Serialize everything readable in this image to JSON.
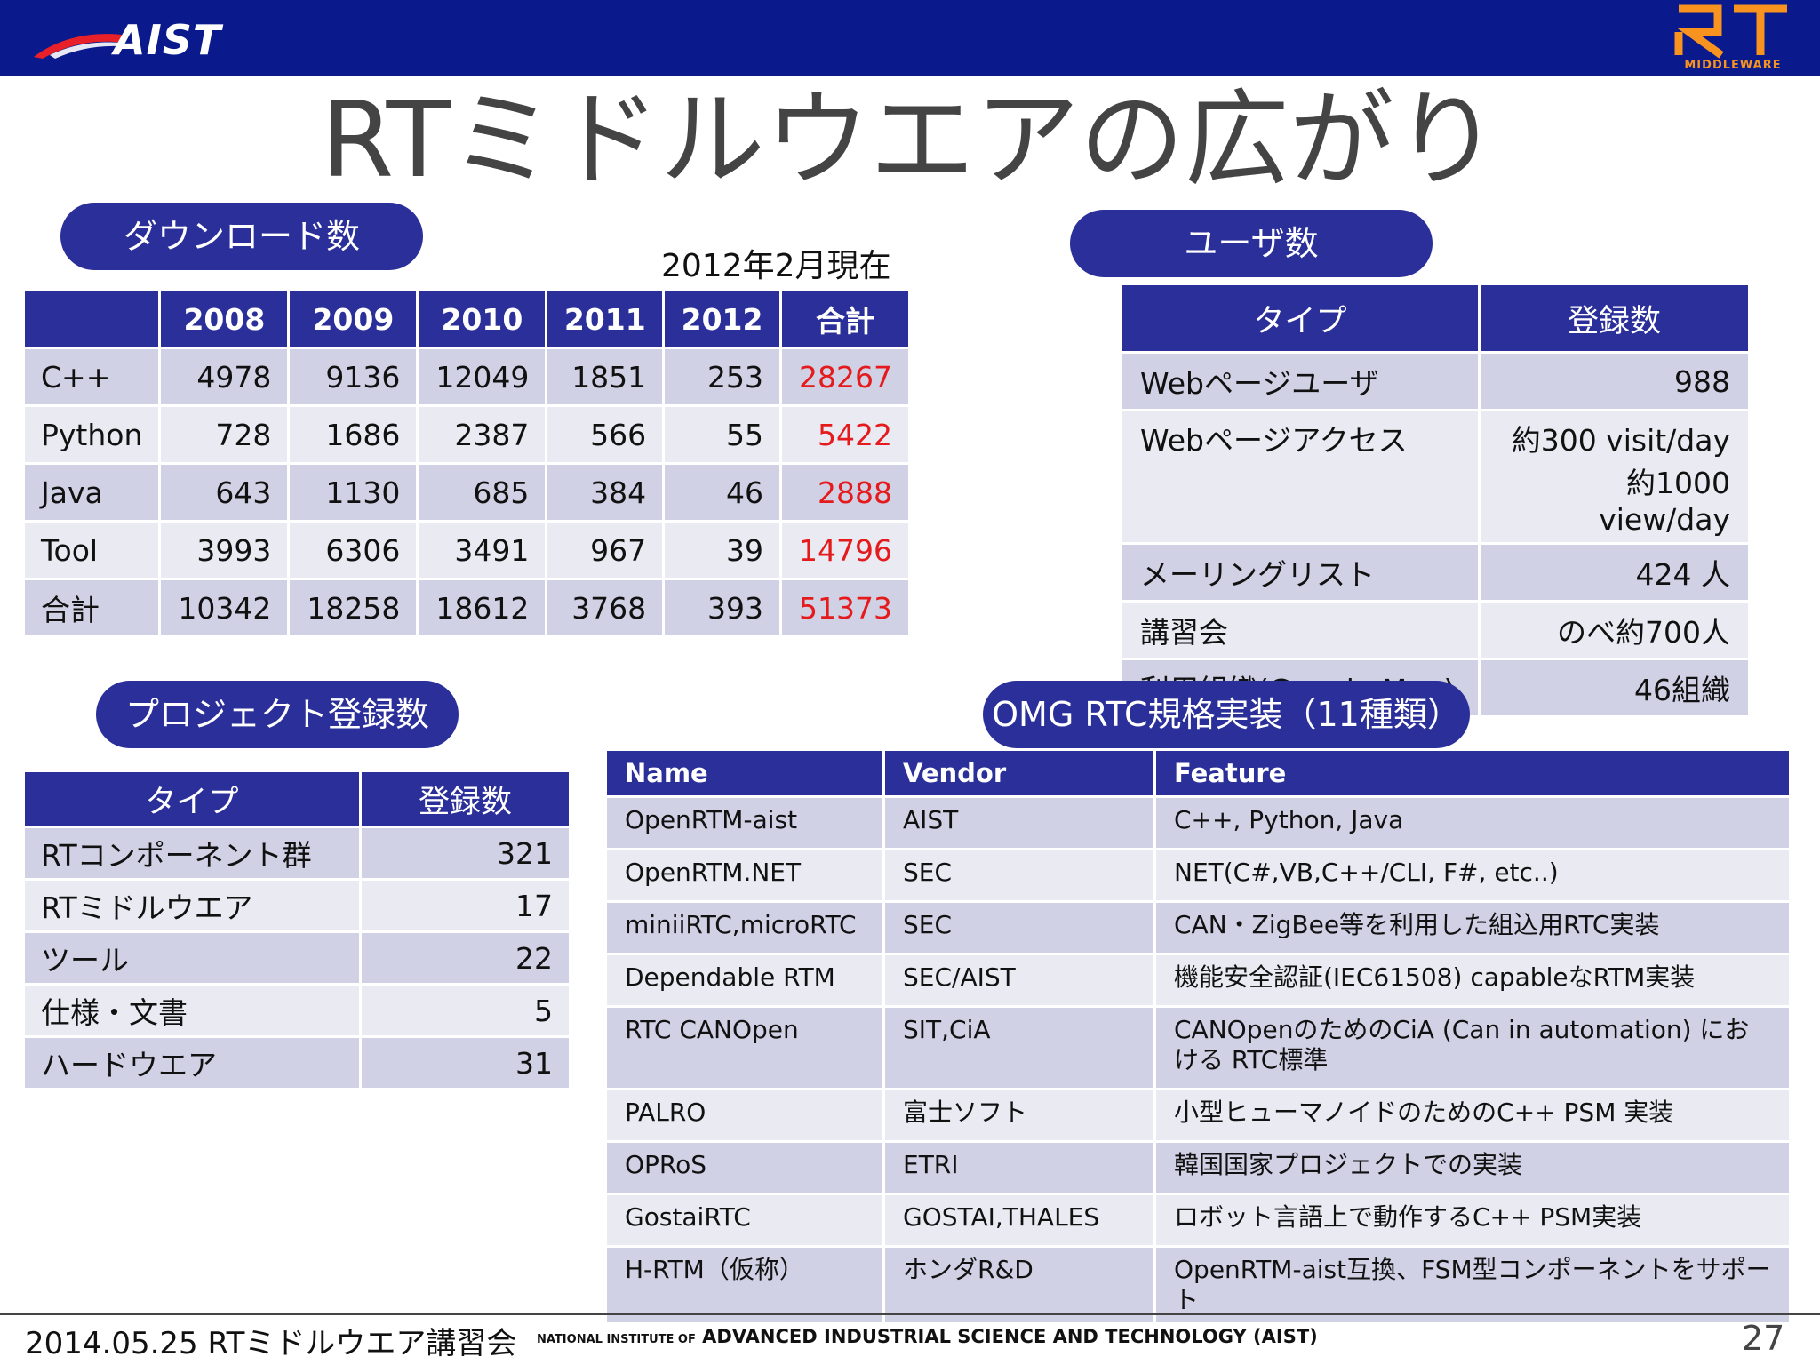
{
  "header": {
    "aist_logo_text": "AIST",
    "rt_logo_text": "RT",
    "rt_logo_sub": "MIDDLEWARE",
    "colors": {
      "bar": "#0a1a8c",
      "logo_red": "#e8202a",
      "logo_orange": "#f7931e"
    }
  },
  "title": "RTミドルウエアの広がり",
  "downloads": {
    "pill": "ダウンロード数",
    "date_note": "2012年2月現在",
    "headers": [
      "",
      "2008",
      "2009",
      "2010",
      "2011",
      "2012",
      "合計"
    ],
    "rows": [
      [
        "C++",
        "4978",
        "9136",
        "12049",
        "1851",
        "253",
        "28267"
      ],
      [
        "Python",
        "728",
        "1686",
        "2387",
        "566",
        "55",
        "5422"
      ],
      [
        "Java",
        "643",
        "1130",
        "685",
        "384",
        "46",
        "2888"
      ],
      [
        "Tool",
        "3993",
        "6306",
        "3491",
        "967",
        "39",
        "14796"
      ],
      [
        "合計",
        "10342",
        "18258",
        "18612",
        "3768",
        "393",
        "51373"
      ]
    ]
  },
  "users": {
    "pill": "ユーザ数",
    "headers": [
      "タイプ",
      "登録数"
    ],
    "rows": [
      [
        "Webページユーザ",
        "988"
      ],
      [
        "Webページアクセス",
        "約300 visit/day",
        "約1000 view/day"
      ],
      [
        "メーリングリスト",
        "424 人"
      ],
      [
        "講習会",
        "のべ約700人"
      ],
      [
        "利用組織(Google Map)",
        "46組織"
      ]
    ]
  },
  "projects": {
    "pill": "プロジェクト登録数",
    "headers": [
      "タイプ",
      "登録数"
    ],
    "rows": [
      [
        "RTコンポーネント群",
        "321"
      ],
      [
        "RTミドルウエア",
        "17"
      ],
      [
        "ツール",
        "22"
      ],
      [
        "仕様・文書",
        "5"
      ],
      [
        "ハードウエア",
        "31"
      ]
    ]
  },
  "omg": {
    "pill": "OMG RTC規格実装（11種類）",
    "headers": [
      "Name",
      "Vendor",
      "Feature"
    ],
    "rows": [
      [
        "OpenRTM-aist",
        "AIST",
        "C++, Python, Java"
      ],
      [
        "OpenRTM.NET",
        "SEC",
        "NET(C#,VB,C++/CLI, F#, etc..)"
      ],
      [
        "miniiRTC,microRTC",
        "SEC",
        "CAN・ZigBee等を利用した組込用RTC実装"
      ],
      [
        "Dependable RTM",
        "SEC/AIST",
        "機能安全認証(IEC61508) capableなRTM実装"
      ],
      [
        "RTC CANOpen",
        "SIT,CiA",
        "CANOpenのためのCiA (Can in automation) における RTC標準"
      ],
      [
        "PALRO",
        "富士ソフト",
        "小型ヒューマノイドのためのC++ PSM 実装"
      ],
      [
        "OPRoS",
        "ETRI",
        "韓国国家プロジェクトでの実装"
      ],
      [
        "GostaiRTC",
        "GOSTAI,THALES",
        "ロボット言語上で動作するC++ PSM実装"
      ],
      [
        "H-RTM（仮称）",
        "ホンダR&D",
        "OpenRTM-aist互換、FSM型コンポーネントをサポート"
      ]
    ]
  },
  "footer": {
    "left": "2014.05.25 RTミドルウエア講習会",
    "mid_small": "NATIONAL INSTITUTE OF",
    "mid_big": "ADVANCED INDUSTRIAL SCIENCE AND TECHNOLOGY (AIST)",
    "page": "27"
  }
}
